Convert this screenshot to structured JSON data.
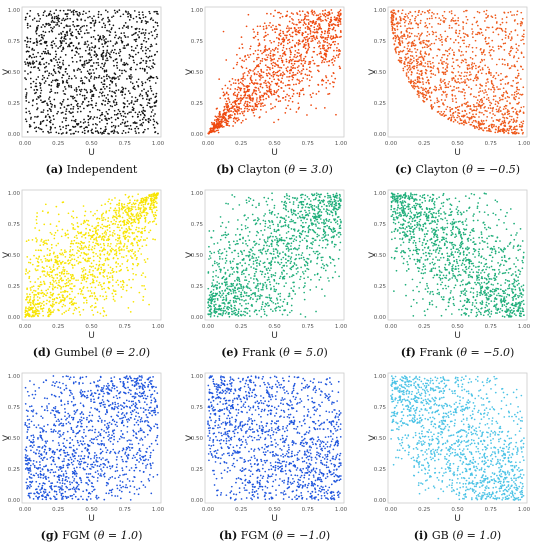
{
  "chart_data": [
    {
      "type": "scatter",
      "copula": "independent",
      "theta": null,
      "color": "#111111",
      "tag": "(a)",
      "name": "Independent",
      "theta_text": "",
      "xlabel": "U",
      "ylabel": "V",
      "xlim": [
        0,
        1
      ],
      "ylim": [
        0,
        1
      ],
      "ticks": [
        "0.00",
        "0.25",
        "0.50",
        "0.75",
        "1.00"
      ]
    },
    {
      "type": "scatter",
      "copula": "clayton",
      "theta": 3.0,
      "color": "#ee4a10",
      "tag": "(b)",
      "name": "Clayton",
      "theta_text": "θ = 3.0",
      "xlabel": "U",
      "ylabel": "V",
      "xlim": [
        0,
        1
      ],
      "ylim": [
        0,
        1
      ],
      "ticks": [
        "0.00",
        "0.25",
        "0.50",
        "0.75",
        "1.00"
      ]
    },
    {
      "type": "scatter",
      "copula": "clayton",
      "theta": -0.5,
      "color": "#ee5a1c",
      "tag": "(c)",
      "name": "Clayton",
      "theta_text": "θ = −0.5",
      "xlabel": "U",
      "ylabel": "V",
      "xlim": [
        0,
        1
      ],
      "ylim": [
        0,
        1
      ],
      "ticks": [
        "0.00",
        "0.25",
        "0.50",
        "0.75",
        "1.00"
      ]
    },
    {
      "type": "scatter",
      "copula": "gumbel",
      "theta": 2.0,
      "color": "#f7e400",
      "tag": "(d)",
      "name": "Gumbel",
      "theta_text": "θ = 2.0",
      "xlabel": "U",
      "ylabel": "V",
      "xlim": [
        0,
        1
      ],
      "ylim": [
        0,
        1
      ],
      "ticks": [
        "0.00",
        "0.25",
        "0.50",
        "0.75",
        "1.00"
      ]
    },
    {
      "type": "scatter",
      "copula": "frank",
      "theta": 5.0,
      "color": "#1fae7a",
      "tag": "(e)",
      "name": "Frank",
      "theta_text": "θ = 5.0",
      "xlabel": "U",
      "ylabel": "V",
      "xlim": [
        0,
        1
      ],
      "ylim": [
        0,
        1
      ],
      "ticks": [
        "0.00",
        "0.25",
        "0.50",
        "0.75",
        "1.00"
      ]
    },
    {
      "type": "scatter",
      "copula": "frank",
      "theta": -5.0,
      "color": "#1fae7a",
      "tag": "(f)",
      "name": "Frank",
      "theta_text": "θ = −5.0",
      "xlabel": "U",
      "ylabel": "V",
      "xlim": [
        0,
        1
      ],
      "ylim": [
        0,
        1
      ],
      "ticks": [
        "0.00",
        "0.25",
        "0.50",
        "0.75",
        "1.00"
      ]
    },
    {
      "type": "scatter",
      "copula": "fgm",
      "theta": 1.0,
      "color": "#1f55dd",
      "tag": "(g)",
      "name": "FGM",
      "theta_text": "θ = 1.0",
      "xlabel": "U",
      "ylabel": "V",
      "xlim": [
        0,
        1
      ],
      "ylim": [
        0,
        1
      ],
      "ticks": [
        "0.00",
        "0.25",
        "0.50",
        "0.75",
        "1.00"
      ]
    },
    {
      "type": "scatter",
      "copula": "fgm",
      "theta": -1.0,
      "color": "#1f55dd",
      "tag": "(h)",
      "name": "FGM",
      "theta_text": "θ = −1.0",
      "xlabel": "U",
      "ylabel": "V",
      "xlim": [
        0,
        1
      ],
      "ylim": [
        0,
        1
      ],
      "ticks": [
        "0.00",
        "0.25",
        "0.50",
        "0.75",
        "1.00"
      ]
    },
    {
      "type": "scatter",
      "copula": "gb",
      "theta": 1.0,
      "color": "#4cc3e6",
      "tag": "(i)",
      "name": "GB",
      "theta_text": "θ = 1.0",
      "xlabel": "U",
      "ylabel": "V",
      "xlim": [
        0,
        1
      ],
      "ylim": [
        0,
        1
      ],
      "ticks": [
        "0.00",
        "0.25",
        "0.50",
        "0.75",
        "1.00"
      ]
    }
  ]
}
